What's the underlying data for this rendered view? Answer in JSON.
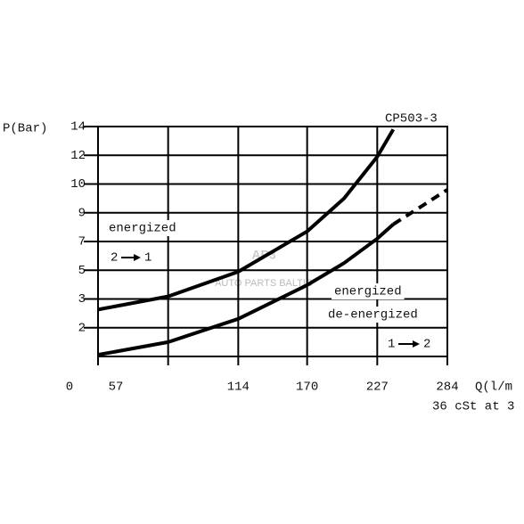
{
  "chart_data": {
    "type": "line",
    "title": "CP503-3",
    "y_label": "P(Bar)",
    "x_label": "Q(l/m",
    "note": "36 cSt at 3",
    "watermark": [
      "AP3",
      "AUTO PARTS BALTIC"
    ],
    "annotations": [
      "energized",
      "2",
      "1",
      "energized",
      "de-energized",
      "1",
      "2"
    ],
    "x": [
      0,
      57,
      114,
      170,
      200,
      227,
      240,
      284
    ],
    "series": [
      {
        "color": "#000000",
        "values": [
          2.63,
          3.18,
          4.9,
          7.7,
          9.5,
          11.9,
          13.8,
          null
        ]
      },
      {
        "color": "#000000",
        "values": [
          1.06,
          1.5,
          2.31,
          3.97,
          5.5,
          7.2,
          8.2,
          null
        ]
      },
      {
        "color": "#000000",
        "dashed": true,
        "values": [
          null,
          null,
          null,
          null,
          null,
          null,
          8.2,
          9.8
        ]
      }
    ],
    "xlim": [
      0,
      284
    ],
    "xticks": [
      0,
      57,
      114,
      170,
      227,
      284
    ],
    "ylim": [
      1,
      14
    ],
    "yticks": [
      14,
      12,
      10,
      9,
      7,
      5,
      3,
      2
    ],
    "grid": true
  }
}
